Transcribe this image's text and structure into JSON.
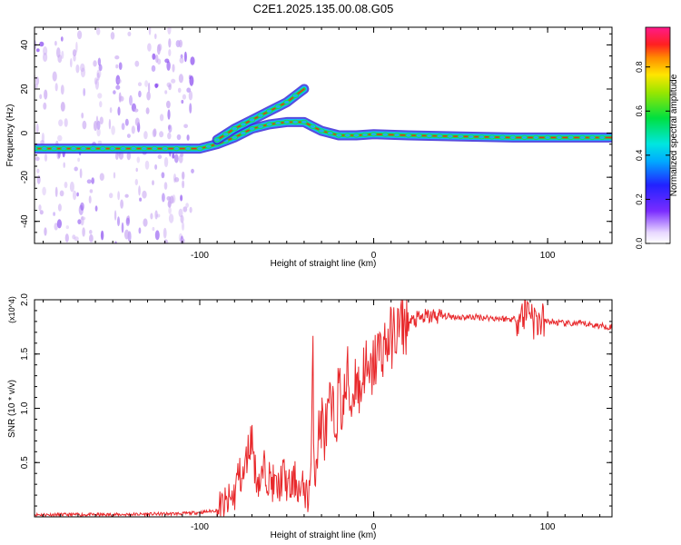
{
  "title": "C2E1.2025.135.00.08.G05",
  "colors": {
    "snr_line": "#e8282b",
    "ridge_core": "#e03020",
    "ridge_mid": "#19e04a",
    "ridge_outer": "#12b8ff",
    "ridge_halo": "#3b2bd8",
    "noise": "#c9a8f2"
  },
  "chart_data": [
    {
      "type": "heatmap",
      "title": "C2E1.2025.135.00.08.G05",
      "xlabel": "Height of straight line (km)",
      "ylabel": "Frequency (Hz)",
      "x_ticks": [
        "-100",
        "0",
        "100"
      ],
      "y_ticks": [
        "40",
        "20",
        "0",
        "-20",
        "-40"
      ],
      "xlim": [
        -195,
        137
      ],
      "ylim": [
        -50,
        48
      ],
      "grid": false,
      "colorbar": {
        "label": "Normalized spectral amplitude",
        "ticks": [
          "0.0",
          "0.2",
          "0.4",
          "0.6",
          "0.8"
        ],
        "range": [
          0,
          0.98
        ],
        "colormap": "rainbow (purple-blue-cyan-green-yellow-red-magenta)"
      },
      "ridges": [
        {
          "name": "main",
          "points": [
            [
              -195,
              -7
            ],
            [
              -150,
              -7
            ],
            [
              -120,
              -7
            ],
            [
              -100,
              -7
            ],
            [
              -90,
              -5
            ],
            [
              -80,
              -2
            ],
            [
              -70,
              2
            ],
            [
              -60,
              4
            ],
            [
              -50,
              5
            ],
            [
              -40,
              5
            ],
            [
              -35,
              3
            ],
            [
              -30,
              1
            ],
            [
              -20,
              -1
            ],
            [
              -10,
              -1
            ],
            [
              0,
              -0.5
            ],
            [
              20,
              -1
            ],
            [
              50,
              -1.5
            ],
            [
              80,
              -2
            ],
            [
              100,
              -2
            ],
            [
              120,
              -2
            ],
            [
              137,
              -2
            ]
          ]
        },
        {
          "name": "upper",
          "points": [
            [
              -90,
              -3
            ],
            [
              -80,
              2
            ],
            [
              -70,
              6
            ],
            [
              -60,
              10
            ],
            [
              -50,
              14
            ],
            [
              -45,
              17
            ],
            [
              -40,
              20
            ]
          ]
        }
      ]
    },
    {
      "type": "line",
      "xlabel": "Height of straight line (km)",
      "ylabel": "SNR (10 * v/v)",
      "y_multiplier": "(x10^4)",
      "x_ticks": [
        "-100",
        "0",
        "100"
      ],
      "y_ticks": [
        "0.5",
        "1.0",
        "1.5",
        "2.0"
      ],
      "xlim": [
        -195,
        137
      ],
      "ylim": [
        0,
        2.0
      ],
      "grid": false,
      "series": [
        {
          "x": [
            -195,
            -150,
            -110,
            -100,
            -90,
            -85,
            -80,
            -78,
            -75,
            -73,
            -70,
            -68,
            -65,
            -63,
            -60,
            -55,
            -52,
            -50,
            -48,
            -45,
            -42,
            -40,
            -38,
            -36,
            -35,
            -34,
            -33,
            -30,
            -28,
            -25,
            -22,
            -20,
            -18,
            -15,
            -13,
            -10,
            -8,
            -5,
            -3,
            0,
            2,
            5,
            10,
            15,
            20,
            25,
            30,
            35,
            40,
            50,
            60,
            70,
            80,
            85,
            88,
            90,
            92,
            95,
            100,
            110,
            120,
            130,
            137
          ],
          "y": [
            0.02,
            0.02,
            0.03,
            0.04,
            0.06,
            0.1,
            0.2,
            0.4,
            0.35,
            0.55,
            0.75,
            0.4,
            0.3,
            0.45,
            0.35,
            0.25,
            0.4,
            0.3,
            0.25,
            0.35,
            0.2,
            0.3,
            0.15,
            0.45,
            1.5,
            0.35,
            0.6,
            0.9,
            0.75,
            1.0,
            0.85,
            1.2,
            0.95,
            1.3,
            1.0,
            1.35,
            1.1,
            1.45,
            1.2,
            1.4,
            1.5,
            1.55,
            1.65,
            1.75,
            1.78,
            1.82,
            1.84,
            1.85,
            1.85,
            1.84,
            1.84,
            1.83,
            1.82,
            1.85,
            1.9,
            1.95,
            1.8,
            1.8,
            1.8,
            1.78,
            1.78,
            1.76,
            1.75
          ]
        }
      ]
    }
  ]
}
